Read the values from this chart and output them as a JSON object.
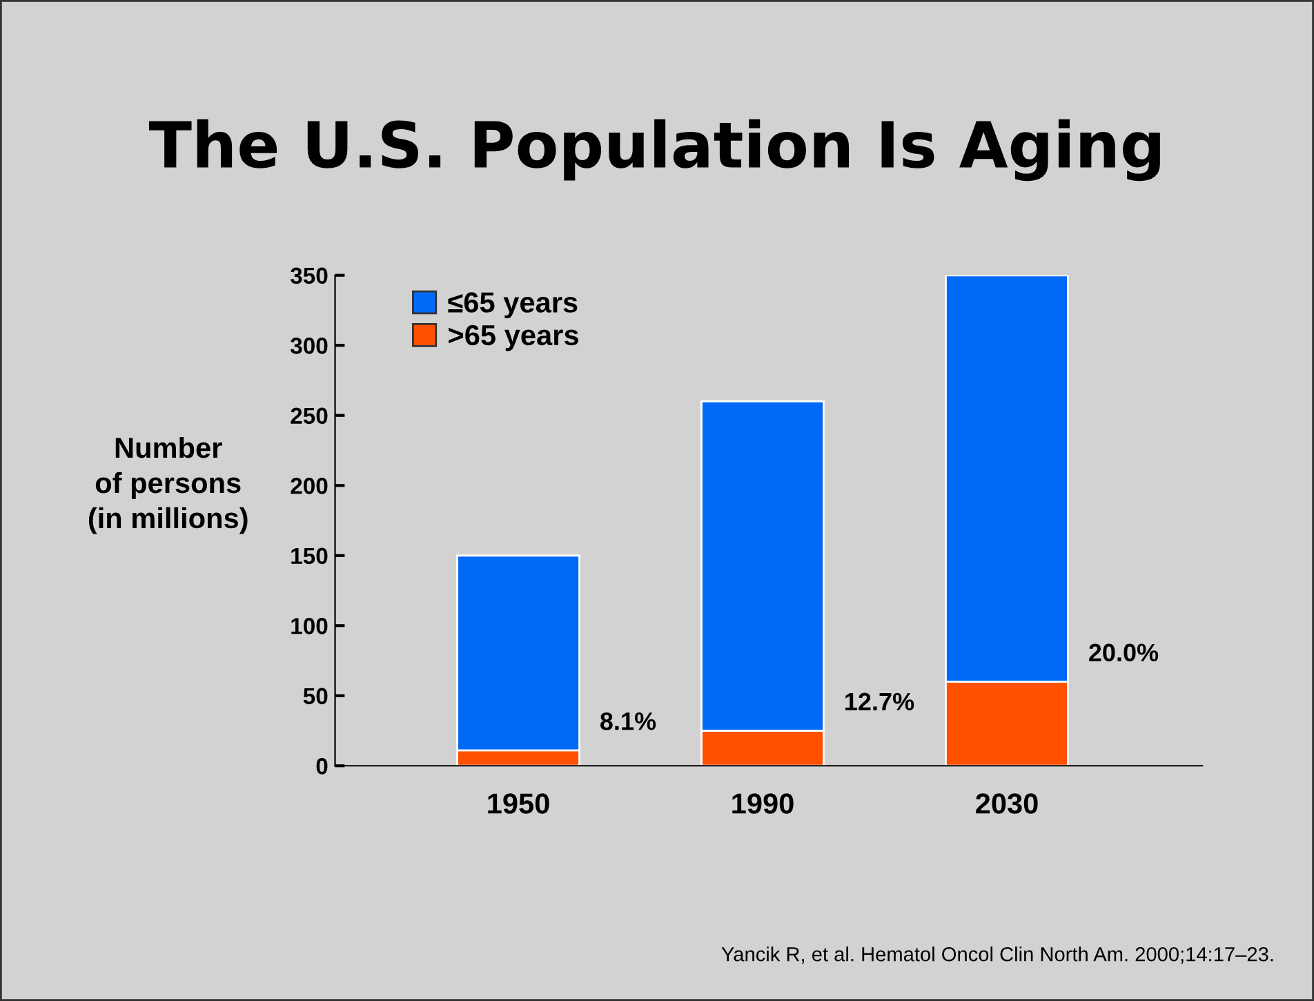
{
  "chart_data": {
    "type": "bar",
    "title": "The U.S. Population Is Aging",
    "ylabel": "Number\nof persons\n(in millions)",
    "categories": [
      "1950",
      "1990",
      "2030"
    ],
    "stacked": true,
    "series": [
      {
        "name": ">65 years",
        "color": "#ff5000",
        "values": [
          11,
          25,
          60
        ]
      },
      {
        "name": "≤65 years",
        "color": "#0069f5",
        "values": [
          139,
          235,
          290
        ]
      }
    ],
    "ylim": [
      0,
      350
    ],
    "yticks": [
      0,
      50,
      100,
      150,
      200,
      250,
      300,
      350
    ],
    "grid": false,
    "legend": "top left",
    "annotations": [
      "8.1%",
      "12.7%",
      "20.0%",
      "Yancik R, et al. Hematol Oncol Clin North Am. 2000;14:17–23."
    ]
  }
}
